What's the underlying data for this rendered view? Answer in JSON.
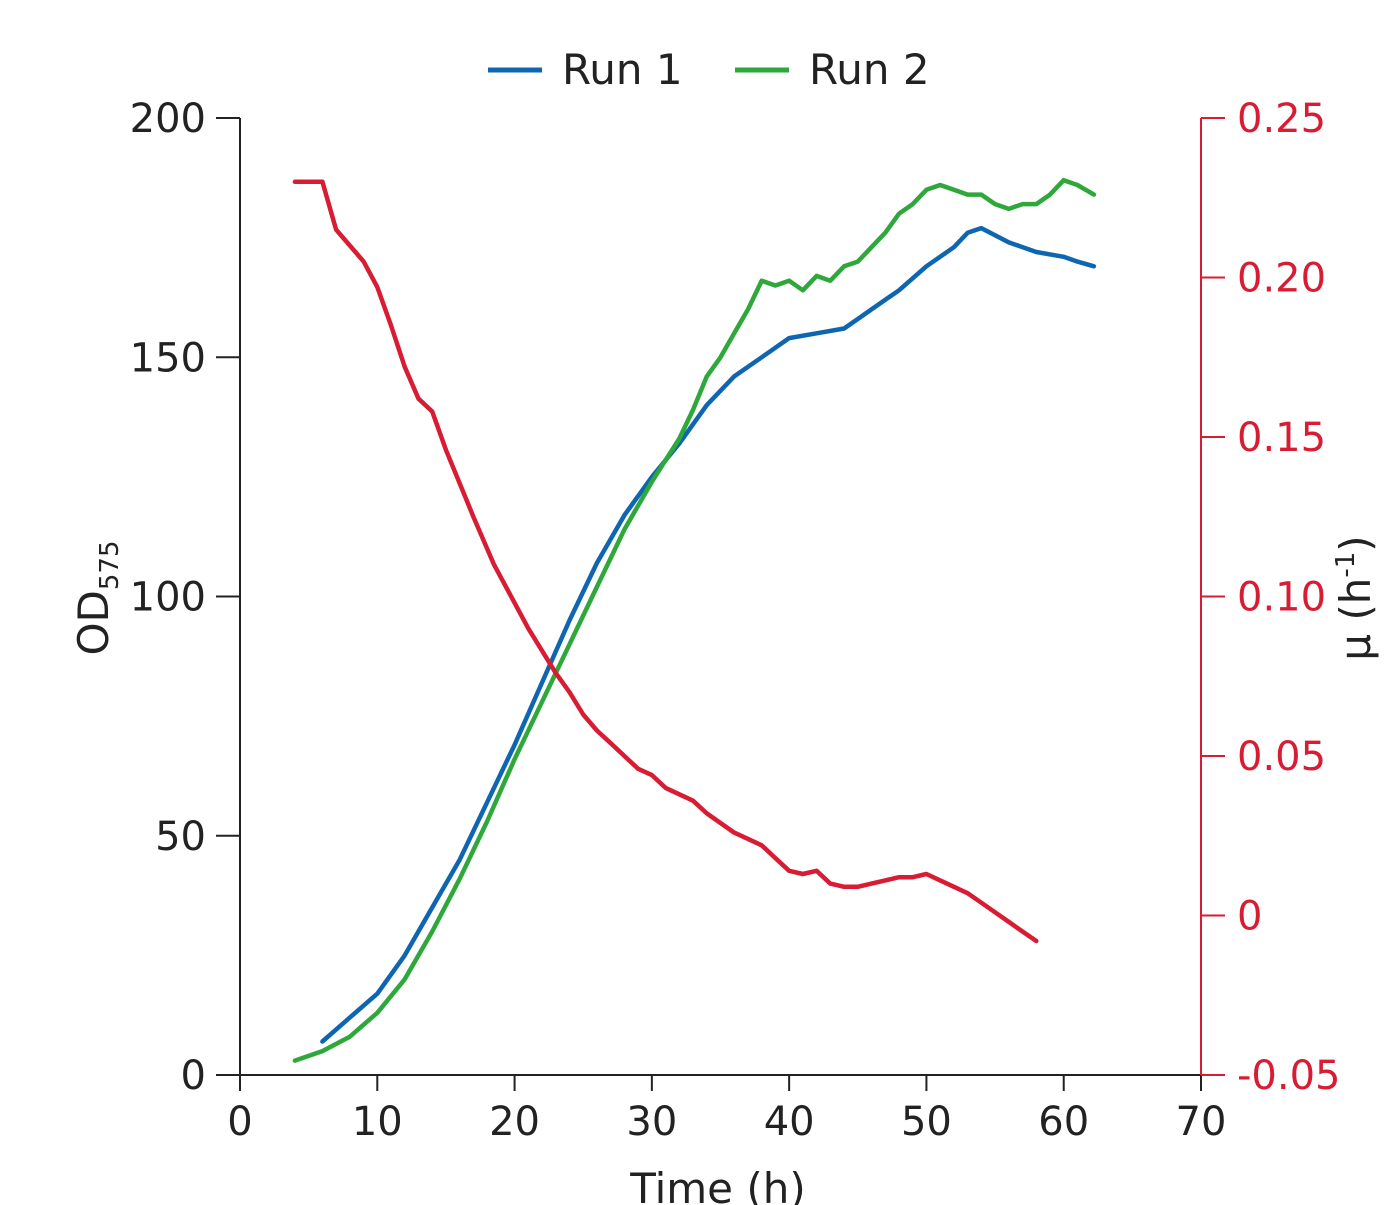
{
  "chart_data": {
    "type": "line",
    "title": "",
    "xlabel": "Time (h)",
    "ylabel": "OD",
    "ylabel_subscript": "575",
    "y2label": "μ (h",
    "y2label_superscript": "-1",
    "y2label_close": ")",
    "xlim": [
      0,
      70
    ],
    "ylim": [
      0,
      200
    ],
    "y2lim": [
      -0.05,
      0.25
    ],
    "x_ticks": [
      "0",
      "10",
      "20",
      "30",
      "40",
      "50",
      "60",
      "70"
    ],
    "y_ticks": [
      "0",
      "50",
      "100",
      "150",
      "200"
    ],
    "y2_ticks": [
      "-0.05",
      "0",
      "0.05",
      "0.10",
      "0.15",
      "0.20",
      "0.25"
    ],
    "grid": false,
    "legend_position": "top-center",
    "legend": [
      "Run 1",
      "Run 2"
    ],
    "colors": {
      "run1": "#0f66b0",
      "run2": "#2ea83a",
      "mu": "#d81c34",
      "axis": "#222222"
    },
    "series": [
      {
        "name": "Run 1",
        "axis": "left",
        "x": [
          6,
          8,
          10,
          12,
          14,
          16,
          18,
          20,
          22,
          24,
          26,
          28,
          30,
          32,
          34,
          36,
          38,
          39,
          40,
          42,
          44,
          45,
          46,
          48,
          50,
          52,
          53,
          54,
          56,
          58,
          60,
          61,
          62.2
        ],
        "y": [
          7,
          12,
          17,
          25,
          35,
          45,
          57,
          69,
          82,
          95,
          107,
          117,
          125,
          132,
          140,
          146,
          150,
          152,
          154,
          155,
          156,
          158,
          160,
          164,
          169,
          173,
          176,
          177,
          174,
          172,
          171,
          170,
          169
        ]
      },
      {
        "name": "Run 2",
        "axis": "left",
        "x": [
          4,
          6,
          8,
          10,
          12,
          14,
          16,
          18,
          20,
          22,
          24,
          26,
          28,
          30,
          32,
          33,
          34,
          35,
          36,
          37,
          38,
          39,
          40,
          41,
          42,
          43,
          44,
          45,
          46,
          47,
          48,
          49,
          50,
          51,
          52,
          53,
          54,
          55,
          56,
          57,
          58,
          59,
          60,
          61,
          62.2
        ],
        "y": [
          3,
          5,
          8,
          13,
          20,
          30,
          41,
          53,
          66,
          78,
          90,
          102,
          114,
          124,
          133,
          139,
          146,
          150,
          155,
          160,
          166,
          165,
          166,
          164,
          167,
          166,
          169,
          170,
          173,
          176,
          180,
          182,
          185,
          186,
          185,
          184,
          184,
          182,
          181,
          182,
          182,
          184,
          187,
          186,
          184
        ]
      },
      {
        "name": "",
        "axis": "right",
        "x": [
          4,
          6,
          7,
          9,
          10,
          11,
          12,
          13,
          14,
          15,
          17,
          18.5,
          20,
          21,
          22,
          23,
          24,
          25,
          26,
          27,
          28,
          29,
          30,
          31,
          32,
          33,
          34,
          35,
          36,
          37,
          38,
          39,
          40,
          41,
          42,
          43,
          44,
          45,
          46,
          47,
          48,
          49,
          50,
          51,
          52,
          53,
          54,
          55,
          56,
          57,
          58
        ],
        "y": [
          0.23,
          0.23,
          0.215,
          0.205,
          0.197,
          0.185,
          0.172,
          0.162,
          0.158,
          0.146,
          0.125,
          0.11,
          0.098,
          0.09,
          0.083,
          0.076,
          0.07,
          0.063,
          0.058,
          0.054,
          0.05,
          0.046,
          0.044,
          0.04,
          0.038,
          0.036,
          0.032,
          0.029,
          0.026,
          0.024,
          0.022,
          0.018,
          0.014,
          0.013,
          0.014,
          0.01,
          0.009,
          0.009,
          0.01,
          0.011,
          0.012,
          0.012,
          0.013,
          0.011,
          0.009,
          0.007,
          0.004,
          0.001,
          -0.002,
          -0.005,
          -0.008
        ]
      }
    ]
  }
}
